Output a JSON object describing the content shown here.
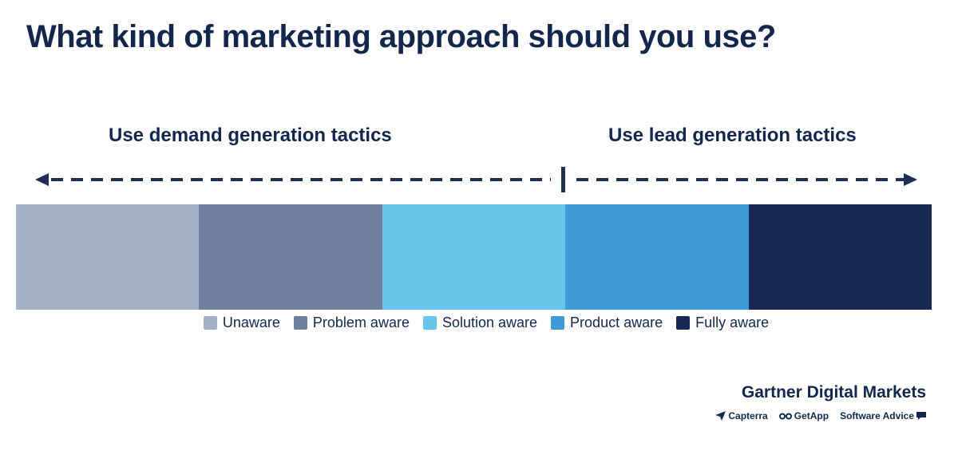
{
  "title": "What kind of marketing approach should you use?",
  "tactics": {
    "left": "Use demand generation tactics",
    "right": "Use lead generation tactics"
  },
  "stages": [
    {
      "label": "Unaware",
      "color": "#a5b1c8"
    },
    {
      "label": "Problem aware",
      "color": "#6f809f"
    },
    {
      "label": "Solution aware",
      "color": "#6ac5ec"
    },
    {
      "label": "Product aware",
      "color": "#3f9bd5"
    },
    {
      "label": "Fully aware",
      "color": "#182a51"
    }
  ],
  "branding": {
    "title": "Gartner Digital Markets",
    "subbrands": [
      {
        "name": "Capterra",
        "icon": "capterra-icon"
      },
      {
        "name": "GetApp",
        "icon": "getapp-icon"
      },
      {
        "name": "Software Advice",
        "icon": "software-advice-icon"
      }
    ]
  },
  "colors": {
    "title": "#13274d",
    "arrow": "#1e2f52"
  }
}
